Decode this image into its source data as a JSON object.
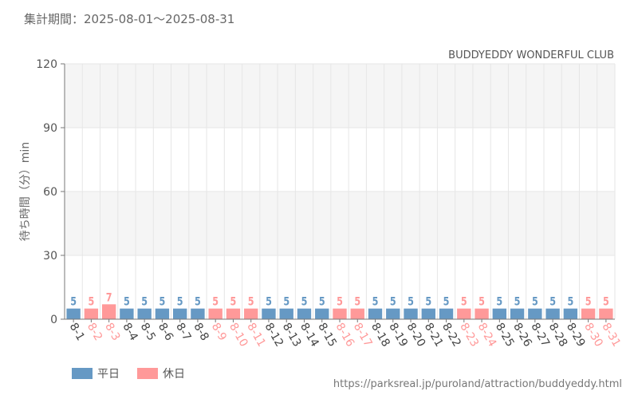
{
  "header": {
    "period": "集計期間：2025-08-01～2025-08-31"
  },
  "footer": {
    "source_url": "https://parksreal.jp/puroland/attraction/buddyeddy.html"
  },
  "colors": {
    "weekday": "#6699c4",
    "holiday": "#ff9999",
    "band": "#f5f5f5",
    "grid": "#e6e6e6",
    "axis": "#777777"
  },
  "chart_data": {
    "type": "bar",
    "title": "BUDDYEDDY WONDERFUL CLUB",
    "ylabel": "待ち時間（分）min",
    "xlabel": "",
    "ylim": [
      0,
      120
    ],
    "yticks": [
      0,
      30,
      60,
      90,
      120
    ],
    "grid": true,
    "legend_position": "bottom-left",
    "legend": [
      {
        "key": "weekday",
        "label": "平日"
      },
      {
        "key": "holiday",
        "label": "休日"
      }
    ],
    "categories": [
      "8-1",
      "8-2",
      "8-3",
      "8-4",
      "8-5",
      "8-6",
      "8-7",
      "8-8",
      "8-9",
      "8-10",
      "8-11",
      "8-12",
      "8-13",
      "8-14",
      "8-15",
      "8-16",
      "8-17",
      "8-18",
      "8-19",
      "8-20",
      "8-21",
      "8-22",
      "8-23",
      "8-24",
      "8-25",
      "8-26",
      "8-27",
      "8-28",
      "8-29",
      "8-30",
      "8-31"
    ],
    "values": [
      5,
      5,
      7,
      5,
      5,
      5,
      5,
      5,
      5,
      5,
      5,
      5,
      5,
      5,
      5,
      5,
      5,
      5,
      5,
      5,
      5,
      5,
      5,
      5,
      5,
      5,
      5,
      5,
      5,
      5,
      5
    ],
    "day_type": [
      "weekday",
      "holiday",
      "holiday",
      "weekday",
      "weekday",
      "weekday",
      "weekday",
      "weekday",
      "holiday",
      "holiday",
      "holiday",
      "weekday",
      "weekday",
      "weekday",
      "weekday",
      "holiday",
      "holiday",
      "weekday",
      "weekday",
      "weekday",
      "weekday",
      "weekday",
      "holiday",
      "holiday",
      "weekday",
      "weekday",
      "weekday",
      "weekday",
      "weekday",
      "holiday",
      "holiday"
    ]
  }
}
